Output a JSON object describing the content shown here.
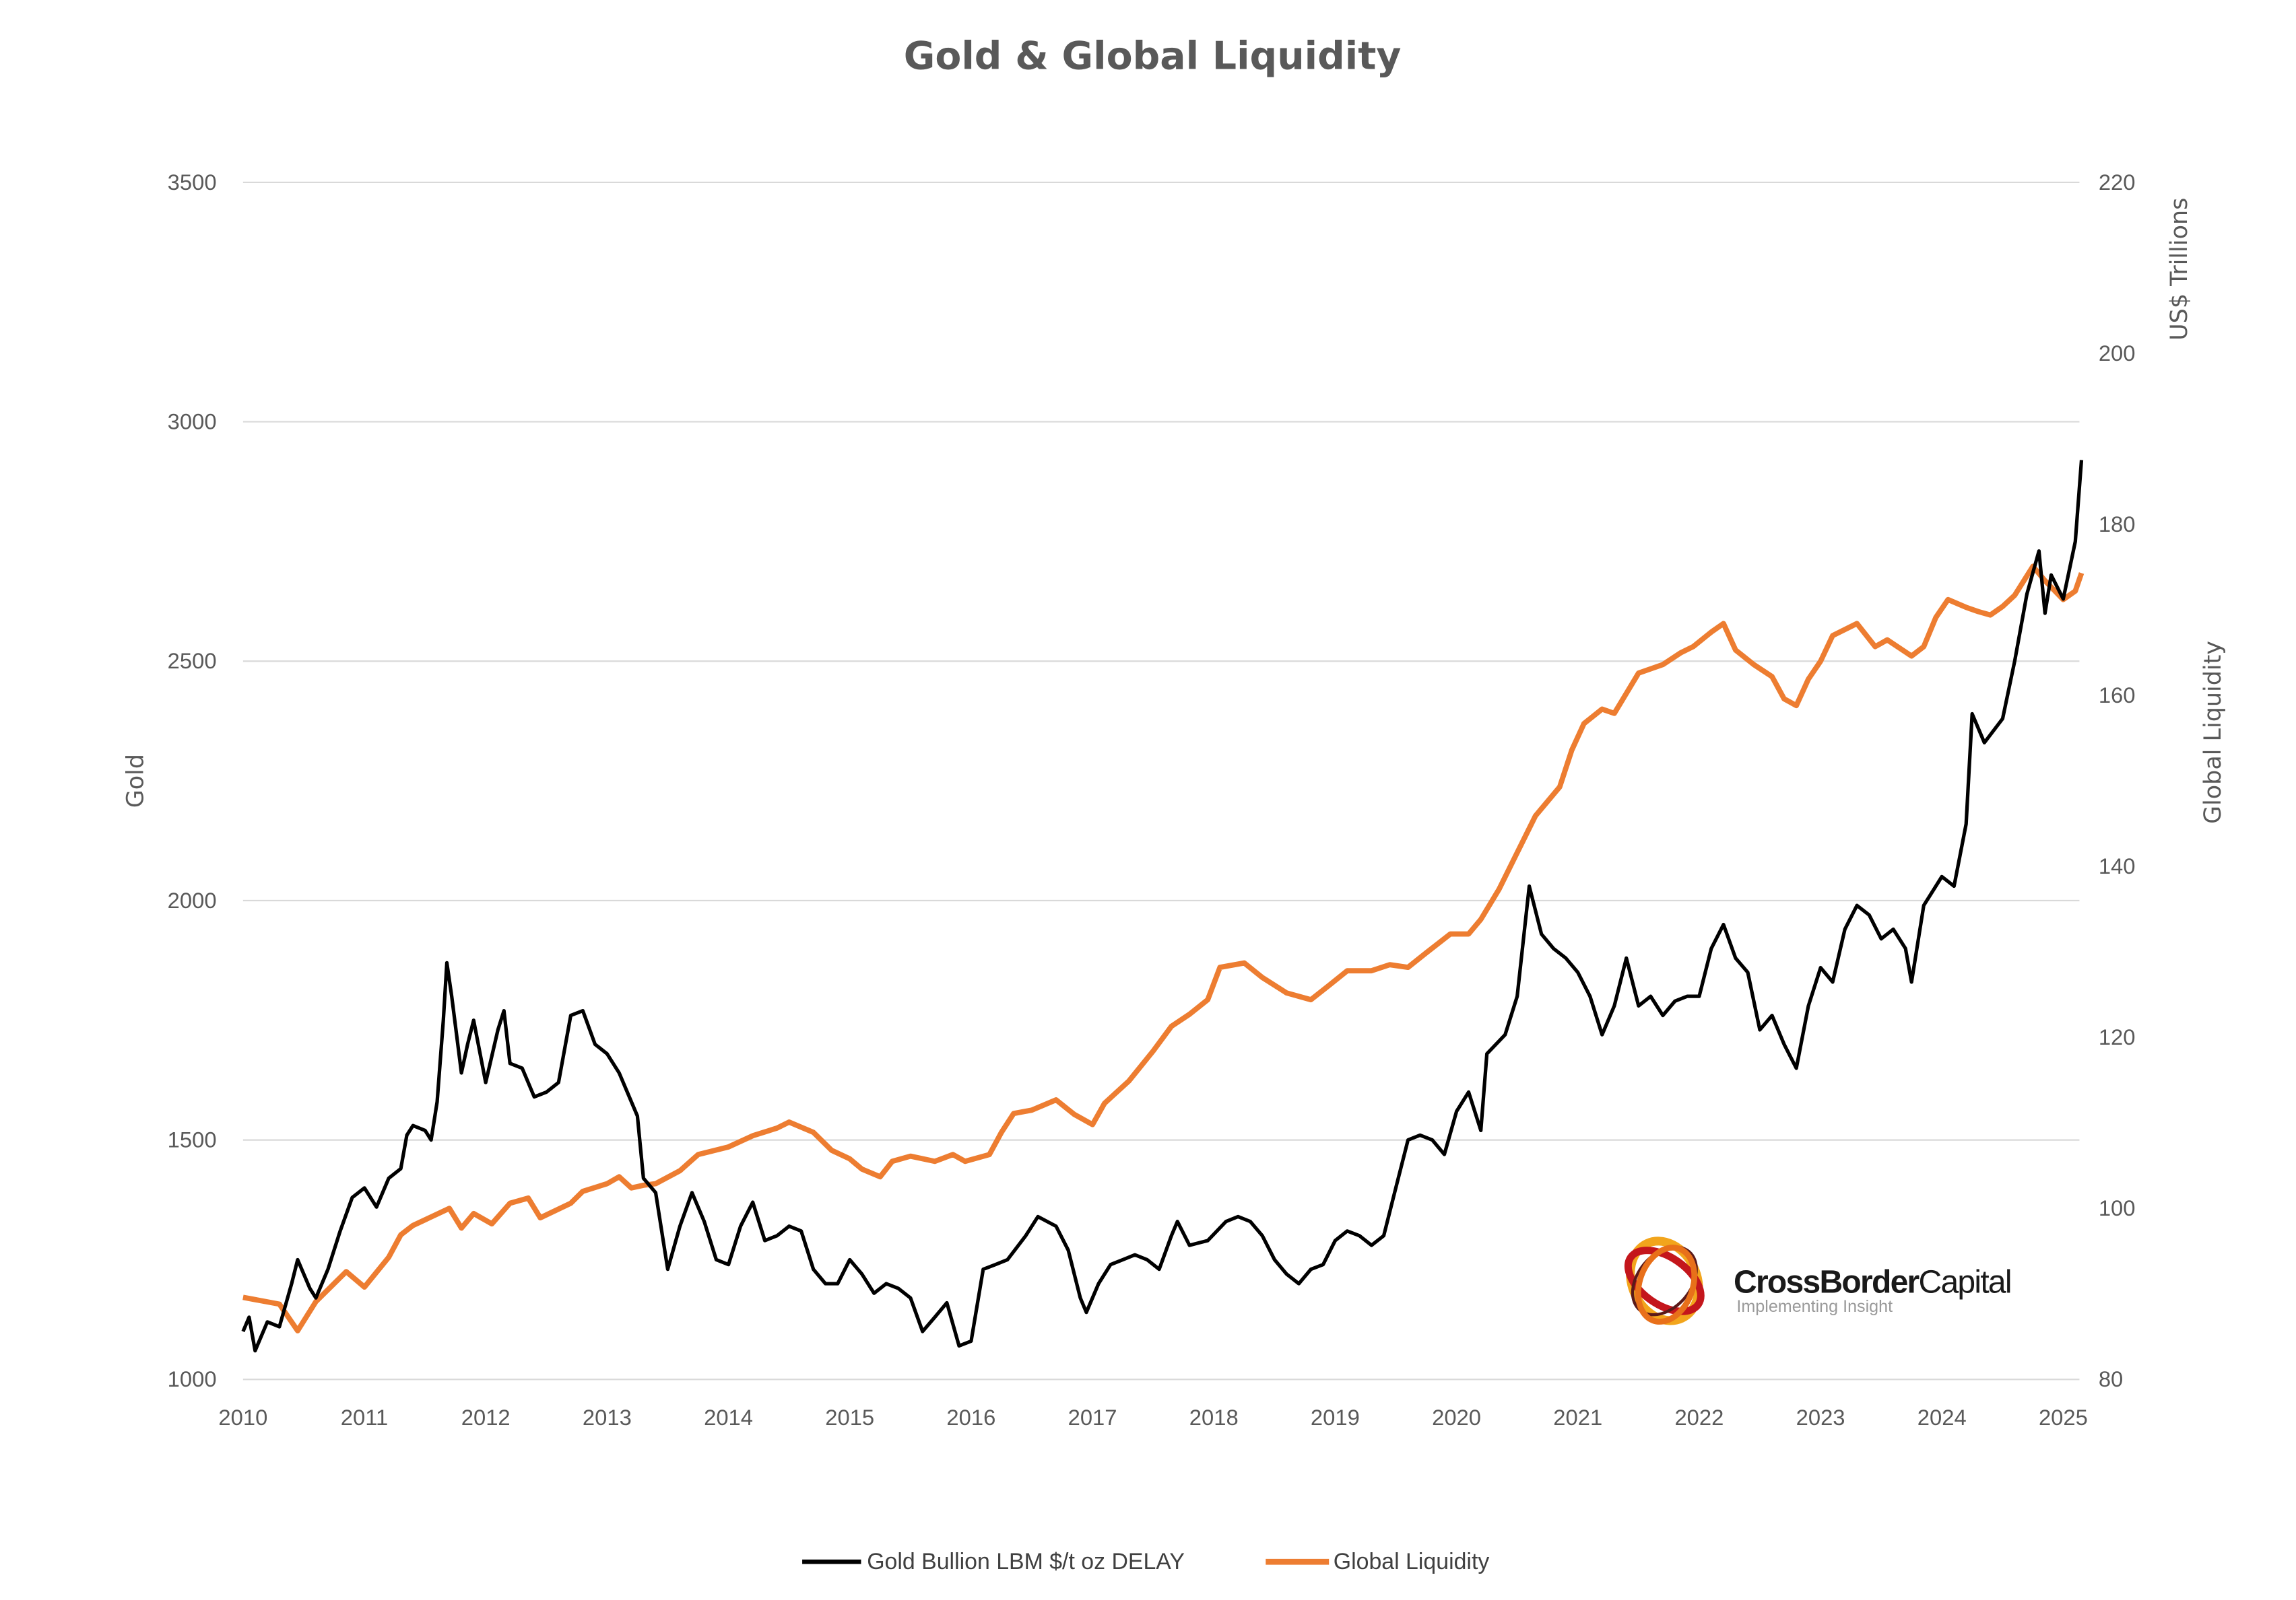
{
  "chart_data": {
    "type": "line",
    "title": "Gold & Global Liquidity",
    "xlim": [
      2010,
      2025
    ],
    "x_ticks": [
      "2010",
      "2011",
      "2012",
      "2013",
      "2014",
      "2015",
      "2016",
      "2017",
      "2018",
      "2019",
      "2020",
      "2021",
      "2022",
      "2023",
      "2024",
      "2025"
    ],
    "y_left": {
      "label": "Gold",
      "lim": [
        1000,
        3500
      ],
      "ticks": [
        "1000",
        "1500",
        "2000",
        "2500",
        "3000",
        "3500"
      ]
    },
    "y_right": {
      "label": "Global Liquidity",
      "unit_label": "US$ Trillions",
      "lim": [
        80,
        220
      ],
      "ticks": [
        "80",
        "100",
        "120",
        "140",
        "160",
        "180",
        "200",
        "220"
      ]
    },
    "grid": true,
    "legend_position": "bottom",
    "series": [
      {
        "name": "Gold Bullion LBM $/t oz DELAY",
        "axis": "left",
        "color": "#000000",
        "x": [
          2010.0,
          2010.05,
          2010.1,
          2010.2,
          2010.3,
          2010.4,
          2010.45,
          2010.55,
          2010.6,
          2010.7,
          2010.8,
          2010.9,
          2011.0,
          2011.1,
          2011.2,
          2011.3,
          2011.35,
          2011.4,
          2011.5,
          2011.55,
          2011.6,
          2011.65,
          2011.68,
          2011.72,
          2011.8,
          2011.85,
          2011.9,
          2012.0,
          2012.1,
          2012.15,
          2012.2,
          2012.3,
          2012.4,
          2012.5,
          2012.6,
          2012.7,
          2012.8,
          2012.9,
          2013.0,
          2013.1,
          2013.2,
          2013.25,
          2013.3,
          2013.4,
          2013.5,
          2013.6,
          2013.7,
          2013.8,
          2013.9,
          2014.0,
          2014.1,
          2014.2,
          2014.3,
          2014.4,
          2014.5,
          2014.6,
          2014.7,
          2014.8,
          2014.9,
          2015.0,
          2015.1,
          2015.2,
          2015.3,
          2015.4,
          2015.5,
          2015.6,
          2015.7,
          2015.8,
          2015.9,
          2016.0,
          2016.1,
          2016.2,
          2016.3,
          2016.45,
          2016.55,
          2016.7,
          2016.8,
          2016.9,
          2016.95,
          2017.05,
          2017.15,
          2017.25,
          2017.35,
          2017.45,
          2017.55,
          2017.65,
          2017.7,
          2017.8,
          2017.95,
          2018.1,
          2018.2,
          2018.3,
          2018.4,
          2018.5,
          2018.6,
          2018.7,
          2018.8,
          2018.9,
          2019.0,
          2019.1,
          2019.2,
          2019.3,
          2019.4,
          2019.5,
          2019.6,
          2019.7,
          2019.8,
          2019.9,
          2020.0,
          2020.1,
          2020.2,
          2020.25,
          2020.4,
          2020.5,
          2020.6,
          2020.7,
          2020.8,
          2020.9,
          2021.0,
          2021.1,
          2021.2,
          2021.3,
          2021.4,
          2021.5,
          2021.6,
          2021.7,
          2021.8,
          2021.9,
          2022.0,
          2022.1,
          2022.2,
          2022.3,
          2022.4,
          2022.5,
          2022.6,
          2022.7,
          2022.8,
          2022.9,
          2023.0,
          2023.1,
          2023.2,
          2023.3,
          2023.4,
          2023.5,
          2023.6,
          2023.7,
          2023.75,
          2023.85,
          2024.0,
          2024.1,
          2024.2,
          2024.25,
          2024.35,
          2024.5,
          2024.6,
          2024.7,
          2024.8,
          2024.85,
          2024.9,
          2025.0,
          2025.1,
          2025.15
        ],
        "y": [
          1100,
          1130,
          1060,
          1120,
          1110,
          1200,
          1250,
          1190,
          1170,
          1230,
          1310,
          1380,
          1400,
          1360,
          1420,
          1440,
          1510,
          1530,
          1520,
          1500,
          1580,
          1750,
          1870,
          1800,
          1640,
          1700,
          1750,
          1620,
          1730,
          1770,
          1660,
          1650,
          1590,
          1600,
          1620,
          1760,
          1770,
          1700,
          1680,
          1640,
          1580,
          1550,
          1420,
          1390,
          1230,
          1320,
          1390,
          1330,
          1250,
          1240,
          1320,
          1370,
          1290,
          1300,
          1320,
          1310,
          1230,
          1200,
          1200,
          1250,
          1220,
          1180,
          1200,
          1190,
          1170,
          1100,
          1130,
          1160,
          1070,
          1080,
          1230,
          1240,
          1250,
          1300,
          1340,
          1320,
          1270,
          1170,
          1140,
          1200,
          1240,
          1250,
          1260,
          1250,
          1230,
          1300,
          1330,
          1280,
          1290,
          1330,
          1340,
          1330,
          1300,
          1250,
          1220,
          1200,
          1230,
          1240,
          1290,
          1310,
          1300,
          1280,
          1300,
          1400,
          1500,
          1510,
          1500,
          1470,
          1560,
          1600,
          1520,
          1680,
          1720,
          1800,
          2030,
          1930,
          1900,
          1880,
          1850,
          1800,
          1720,
          1780,
          1880,
          1780,
          1800,
          1760,
          1790,
          1800,
          1800,
          1900,
          1950,
          1880,
          1850,
          1730,
          1760,
          1700,
          1650,
          1780,
          1860,
          1830,
          1940,
          1990,
          1970,
          1920,
          1940,
          1900,
          1830,
          1990,
          2050,
          2030,
          2160,
          2390,
          2330,
          2380,
          2500,
          2640,
          2730,
          2600,
          2680,
          2630,
          2750,
          2920
        ]
      },
      {
        "name": "Global Liquidity",
        "axis": "right",
        "color": "#ed7d31",
        "x": [
          2010.0,
          2010.3,
          2010.45,
          2010.6,
          2010.85,
          2011.0,
          2011.2,
          2011.3,
          2011.4,
          2011.7,
          2011.8,
          2011.9,
          2012.05,
          2012.2,
          2012.35,
          2012.45,
          2012.7,
          2012.8,
          2013.0,
          2013.1,
          2013.2,
          2013.3,
          2013.4,
          2013.6,
          2013.75,
          2014.0,
          2014.2,
          2014.4,
          2014.5,
          2014.7,
          2014.85,
          2015.0,
          2015.1,
          2015.25,
          2015.35,
          2015.5,
          2015.7,
          2015.85,
          2015.95,
          2016.15,
          2016.25,
          2016.35,
          2016.5,
          2016.7,
          2016.85,
          2017.0,
          2017.1,
          2017.3,
          2017.5,
          2017.65,
          2017.8,
          2017.95,
          2018.05,
          2018.25,
          2018.4,
          2018.6,
          2018.8,
          2018.95,
          2019.1,
          2019.3,
          2019.45,
          2019.6,
          2019.75,
          2019.95,
          2020.1,
          2020.2,
          2020.35,
          2020.5,
          2020.65,
          2020.85,
          2020.95,
          2021.05,
          2021.2,
          2021.3,
          2021.5,
          2021.7,
          2021.85,
          2021.95,
          2022.1,
          2022.2,
          2022.3,
          2022.45,
          2022.6,
          2022.7,
          2022.8,
          2022.9,
          2023.0,
          2023.1,
          2023.3,
          2023.45,
          2023.55,
          2023.75,
          2023.85,
          2023.95,
          2024.05,
          2024.2,
          2024.3,
          2024.4,
          2024.5,
          2024.6,
          2024.75,
          2024.85,
          2025.0,
          2025.1,
          2025.15
        ],
        "y": [
          89.6,
          88.8,
          85.7,
          89.1,
          92.6,
          90.8,
          94.3,
          96.9,
          98.0,
          100.0,
          97.7,
          99.4,
          98.2,
          100.6,
          101.2,
          98.9,
          100.6,
          102.0,
          102.9,
          103.7,
          102.4,
          102.7,
          102.9,
          104.4,
          106.3,
          107.2,
          108.5,
          109.4,
          110.1,
          108.9,
          106.8,
          105.8,
          104.6,
          103.7,
          105.5,
          106.1,
          105.5,
          106.3,
          105.5,
          106.3,
          108.9,
          111.1,
          111.5,
          112.7,
          111.0,
          109.8,
          112.3,
          114.9,
          118.4,
          121.3,
          122.7,
          124.4,
          128.2,
          128.7,
          127.0,
          125.2,
          124.4,
          126.1,
          127.8,
          127.8,
          128.5,
          128.2,
          129.9,
          132.1,
          132.1,
          133.8,
          137.3,
          141.6,
          145.9,
          149.3,
          153.6,
          156.7,
          158.4,
          157.9,
          162.6,
          163.6,
          165.0,
          165.7,
          167.4,
          168.4,
          165.3,
          163.6,
          162.2,
          159.6,
          158.8,
          161.9,
          164.0,
          167.0,
          168.4,
          165.7,
          166.5,
          164.6,
          165.7,
          169.1,
          171.2,
          170.3,
          169.8,
          169.4,
          170.4,
          171.7,
          175.1,
          173.4,
          171.2,
          172.2,
          174.3
        ]
      }
    ]
  },
  "logo": {
    "name": "CrossBorderCapital",
    "name_bold": "CrossBorder",
    "name_light": "Capital",
    "tagline": "Implementing Insight"
  }
}
